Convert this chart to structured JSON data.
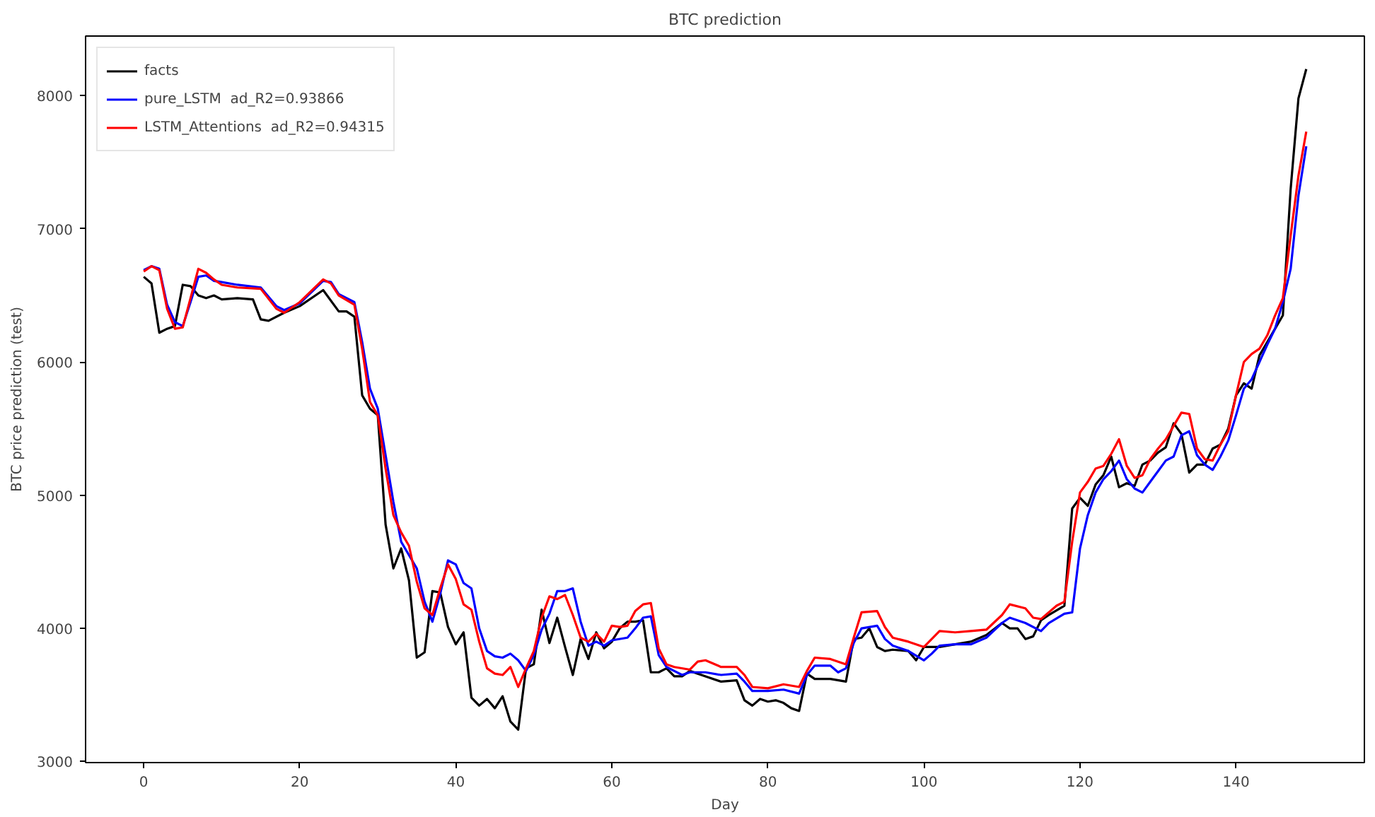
{
  "chart_data": {
    "type": "line",
    "title": "BTC prediction",
    "xlabel": "Day",
    "ylabel": "BTC price prediction (test)",
    "xlim": [
      -7.45,
      156.45
    ],
    "ylim": [
      2992,
      8448
    ],
    "xticks": [
      0,
      20,
      40,
      60,
      80,
      100,
      120,
      140
    ],
    "yticks": [
      3000,
      4000,
      5000,
      6000,
      7000,
      8000
    ],
    "grid": false,
    "legend": "top left",
    "line_style": "solid",
    "marker": "none",
    "series": [
      {
        "name": "facts",
        "color": "#000000",
        "x": [
          0,
          1,
          2,
          3,
          4,
          5,
          6,
          7,
          8,
          9,
          10,
          12,
          14,
          15,
          16,
          18,
          20,
          23,
          25,
          26,
          27,
          28,
          29,
          30,
          31,
          32,
          33,
          34,
          35,
          36,
          37,
          38,
          39,
          40,
          41,
          42,
          43,
          44,
          45,
          46,
          47,
          48,
          49,
          50,
          51,
          52,
          53,
          54,
          55,
          56,
          57,
          58,
          59,
          60,
          61,
          62,
          63,
          64,
          65,
          66,
          67,
          68,
          69,
          70,
          72,
          74,
          76,
          77,
          78,
          79,
          80,
          81,
          82,
          83,
          84,
          85,
          86,
          88,
          90,
          91,
          92,
          93,
          94,
          95,
          96,
          98,
          99,
          100,
          102,
          104,
          106,
          108,
          110,
          111,
          112,
          113,
          114,
          115,
          116,
          118,
          119,
          120,
          121,
          122,
          123,
          124,
          125,
          126,
          127,
          128,
          129,
          130,
          131,
          132,
          133,
          134,
          135,
          136,
          137,
          138,
          139,
          140,
          141,
          142,
          143,
          144,
          145,
          146,
          147,
          148,
          149
        ],
        "values": [
          6640,
          6590,
          6220,
          6250,
          6270,
          6580,
          6570,
          6500,
          6480,
          6500,
          6470,
          6480,
          6470,
          6320,
          6310,
          6370,
          6420,
          6540,
          6380,
          6380,
          6340,
          5750,
          5650,
          5600,
          4780,
          4450,
          4600,
          4360,
          3780,
          3820,
          4280,
          4270,
          4010,
          3880,
          3970,
          3480,
          3420,
          3470,
          3400,
          3490,
          3300,
          3240,
          3700,
          3730,
          4140,
          3890,
          4080,
          3860,
          3650,
          3920,
          3770,
          3970,
          3850,
          3900,
          4000,
          4050,
          4050,
          4060,
          3670,
          3670,
          3700,
          3640,
          3640,
          3680,
          3640,
          3600,
          3610,
          3460,
          3420,
          3470,
          3450,
          3460,
          3440,
          3400,
          3380,
          3660,
          3620,
          3620,
          3600,
          3920,
          3930,
          4000,
          3860,
          3830,
          3840,
          3830,
          3760,
          3860,
          3860,
          3880,
          3900,
          3950,
          4040,
          4000,
          4000,
          3920,
          3940,
          4060,
          4100,
          4170,
          4900,
          4980,
          4920,
          5080,
          5150,
          5290,
          5060,
          5090,
          5070,
          5230,
          5260,
          5320,
          5360,
          5540,
          5460,
          5170,
          5230,
          5230,
          5350,
          5380,
          5500,
          5750,
          5840,
          5800,
          6050,
          6150,
          6250,
          6350,
          7300,
          7980,
          8200
        ]
      },
      {
        "name": "pure_LSTM  ad_R2=0.93866",
        "color": "#0000ff",
        "x": [
          0,
          1,
          2,
          3,
          4,
          5,
          6,
          7,
          8,
          9,
          10,
          12,
          15,
          17,
          18,
          20,
          23,
          24,
          25,
          27,
          28,
          29,
          30,
          31,
          32,
          33,
          34,
          35,
          36,
          37,
          38,
          39,
          40,
          41,
          42,
          43,
          44,
          45,
          46,
          47,
          48,
          49,
          50,
          51,
          52,
          53,
          54,
          55,
          56,
          57,
          58,
          59,
          60,
          62,
          63,
          64,
          65,
          66,
          67,
          68,
          69,
          70,
          72,
          74,
          76,
          77,
          78,
          80,
          82,
          84,
          85,
          86,
          88,
          89,
          90,
          91,
          92,
          94,
          95,
          96,
          98,
          100,
          101,
          102,
          104,
          106,
          108,
          110,
          111,
          113,
          115,
          116,
          118,
          119,
          120,
          121,
          122,
          123,
          124,
          125,
          126,
          127,
          128,
          129,
          130,
          131,
          132,
          133,
          134,
          135,
          136,
          137,
          138,
          139,
          140,
          141,
          142,
          143,
          144,
          145,
          146,
          147,
          148,
          149
        ],
        "values": [
          6690,
          6720,
          6700,
          6430,
          6300,
          6270,
          6450,
          6640,
          6650,
          6610,
          6600,
          6580,
          6560,
          6420,
          6390,
          6440,
          6610,
          6600,
          6510,
          6450,
          6150,
          5800,
          5650,
          5300,
          4950,
          4650,
          4550,
          4450,
          4200,
          4050,
          4260,
          4510,
          4480,
          4340,
          4300,
          4000,
          3830,
          3790,
          3780,
          3810,
          3760,
          3680,
          3800,
          3990,
          4110,
          4280,
          4280,
          4300,
          4050,
          3870,
          3900,
          3870,
          3910,
          3930,
          4000,
          4080,
          4090,
          3800,
          3710,
          3680,
          3650,
          3670,
          3670,
          3650,
          3660,
          3600,
          3530,
          3530,
          3540,
          3510,
          3650,
          3720,
          3720,
          3670,
          3700,
          3890,
          4000,
          4020,
          3920,
          3870,
          3830,
          3760,
          3810,
          3870,
          3880,
          3880,
          3930,
          4040,
          4080,
          4040,
          3980,
          4040,
          4110,
          4120,
          4600,
          4850,
          5020,
          5120,
          5180,
          5260,
          5120,
          5050,
          5020,
          5100,
          5180,
          5260,
          5290,
          5450,
          5480,
          5300,
          5230,
          5190,
          5290,
          5410,
          5600,
          5800,
          5870,
          6000,
          6130,
          6250,
          6450,
          6700,
          7250,
          7620
        ]
      },
      {
        "name": "LSTM_Attentions  ad_R2=0.94315",
        "color": "#ff0000",
        "x": [
          0,
          1,
          2,
          3,
          4,
          5,
          6,
          7,
          8,
          9,
          10,
          12,
          15,
          17,
          18,
          20,
          23,
          24,
          25,
          27,
          28,
          29,
          30,
          31,
          32,
          33,
          34,
          35,
          36,
          37,
          38,
          39,
          40,
          41,
          42,
          43,
          44,
          45,
          46,
          47,
          48,
          49,
          50,
          51,
          52,
          53,
          54,
          55,
          56,
          57,
          58,
          59,
          60,
          61,
          62,
          63,
          64,
          65,
          66,
          67,
          68,
          70,
          71,
          72,
          74,
          76,
          77,
          78,
          80,
          82,
          84,
          85,
          86,
          88,
          90,
          91,
          92,
          94,
          95,
          96,
          98,
          100,
          101,
          102,
          104,
          106,
          108,
          110,
          111,
          113,
          114,
          115,
          117,
          118,
          119,
          120,
          121,
          122,
          123,
          124,
          125,
          126,
          127,
          128,
          129,
          130,
          131,
          132,
          133,
          134,
          135,
          136,
          137,
          138,
          139,
          140,
          141,
          142,
          143,
          144,
          145,
          146,
          147,
          148,
          149
        ],
        "values": [
          6680,
          6720,
          6690,
          6400,
          6250,
          6260,
          6480,
          6700,
          6670,
          6620,
          6580,
          6560,
          6550,
          6400,
          6370,
          6450,
          6620,
          6590,
          6500,
          6430,
          6100,
          5700,
          5600,
          5200,
          4850,
          4720,
          4620,
          4350,
          4150,
          4100,
          4300,
          4480,
          4370,
          4180,
          4140,
          3900,
          3700,
          3660,
          3650,
          3710,
          3560,
          3700,
          3830,
          4080,
          4240,
          4220,
          4250,
          4100,
          3930,
          3900,
          3960,
          3900,
          4020,
          4010,
          4020,
          4130,
          4180,
          4190,
          3850,
          3730,
          3710,
          3690,
          3750,
          3760,
          3710,
          3710,
          3650,
          3560,
          3550,
          3580,
          3560,
          3680,
          3780,
          3770,
          3730,
          3930,
          4120,
          4130,
          4010,
          3930,
          3900,
          3860,
          3920,
          3980,
          3970,
          3980,
          3990,
          4100,
          4180,
          4150,
          4080,
          4070,
          4170,
          4200,
          4650,
          5020,
          5100,
          5200,
          5220,
          5310,
          5420,
          5220,
          5130,
          5150,
          5270,
          5350,
          5420,
          5520,
          5620,
          5610,
          5350,
          5270,
          5260,
          5380,
          5480,
          5750,
          6000,
          6060,
          6100,
          6200,
          6350,
          6480,
          6950,
          7400,
          7730
        ]
      }
    ]
  }
}
